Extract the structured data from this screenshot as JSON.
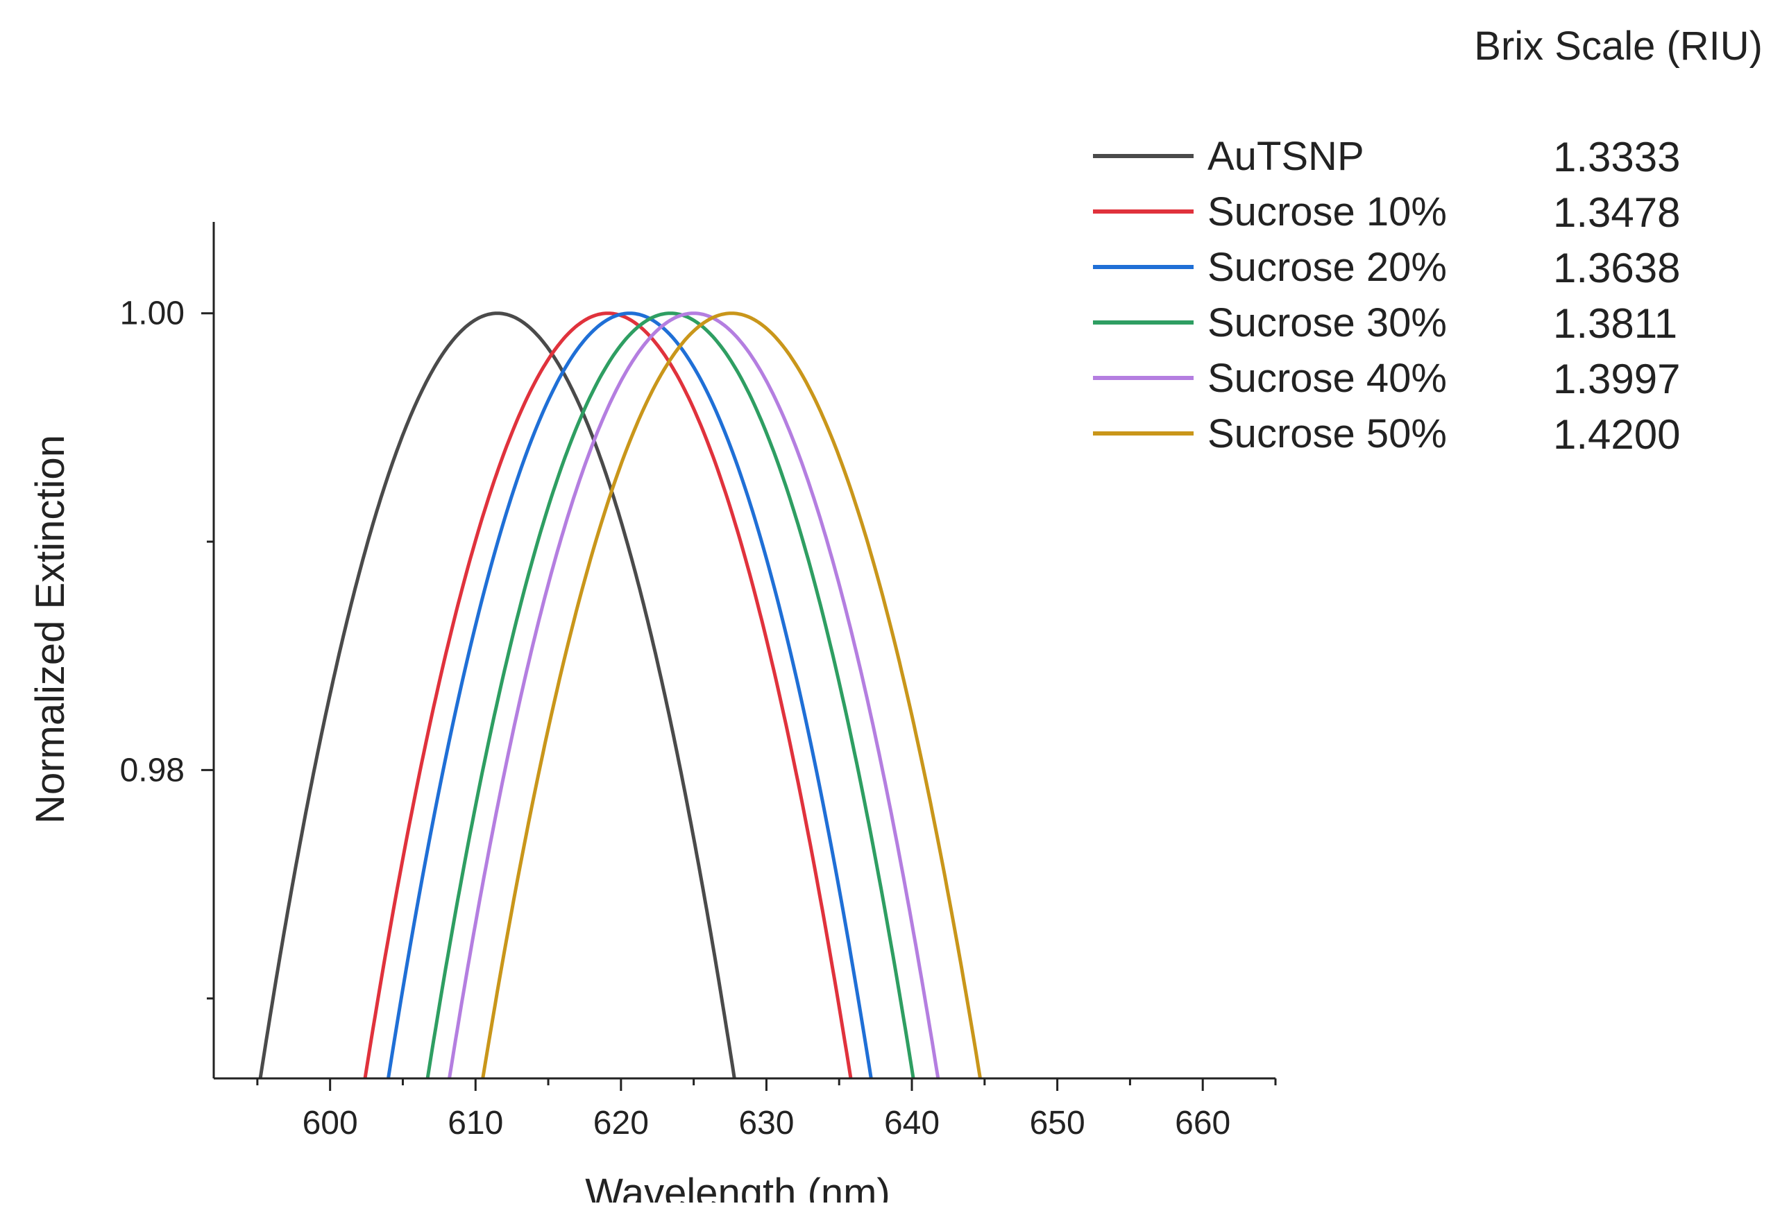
{
  "chart_data": {
    "type": "line",
    "xlabel": "Wavelength (nm)",
    "ylabel": "Normalized Extinction",
    "xlim": [
      592,
      665
    ],
    "ylim": [
      0.9665,
      1.004
    ],
    "xticks": [
      600,
      610,
      620,
      630,
      640,
      650,
      660
    ],
    "xtick_labels": [
      "600",
      "610",
      "620",
      "630",
      "640",
      "650",
      "660"
    ],
    "yticks_labeled": [
      0.98,
      1.0
    ],
    "ytick_labels": [
      "0.98",
      "1.00"
    ],
    "yticks_minor": [
      0.97,
      0.99
    ],
    "legend_title": "Brix Scale (RIU)",
    "legend_position": "top-right",
    "series": [
      {
        "name": "AuTSNP",
        "riu": "1.3333",
        "color": "#4a4a4a",
        "peak_nm": 611.5,
        "peak_value": 1.0,
        "min_nm": 595.2,
        "max_nm": 627.8
      },
      {
        "name": "Sucrose 10%",
        "riu": "1.3478",
        "color": "#e0323c",
        "peak_nm": 619.1,
        "peak_value": 1.0,
        "min_nm": 602.4,
        "max_nm": 635.8
      },
      {
        "name": "Sucrose 20%",
        "riu": "1.3638",
        "color": "#1f6fd6",
        "peak_nm": 620.6,
        "peak_value": 1.0,
        "min_nm": 604.0,
        "max_nm": 637.2
      },
      {
        "name": "Sucrose 30%",
        "riu": "1.3811",
        "color": "#2e9e62",
        "peak_nm": 623.4,
        "peak_value": 1.0,
        "min_nm": 606.7,
        "max_nm": 640.1
      },
      {
        "name": "Sucrose 40%",
        "riu": "1.3997",
        "color": "#b47ee0",
        "peak_nm": 625.0,
        "peak_value": 1.0,
        "min_nm": 608.2,
        "max_nm": 641.8
      },
      {
        "name": "Sucrose 50%",
        "riu": "1.4200",
        "color": "#c9961a",
        "peak_nm": 627.6,
        "peak_value": 1.0,
        "min_nm": 610.5,
        "max_nm": 644.7
      }
    ]
  }
}
